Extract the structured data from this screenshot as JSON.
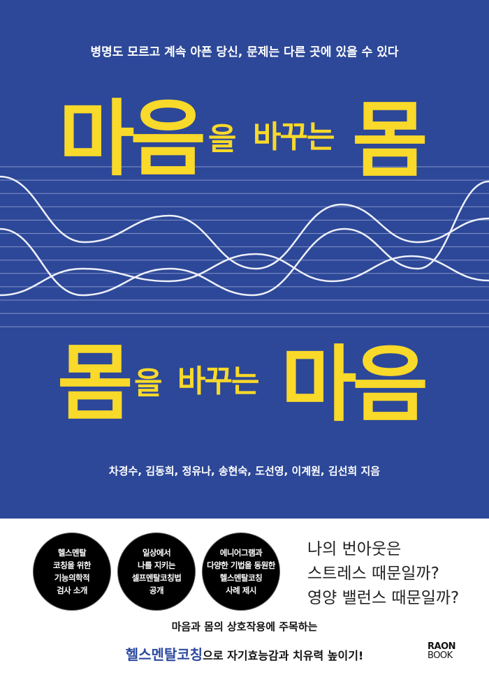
{
  "cover": {
    "colors": {
      "background": "#2d4898",
      "title": "#f9d92a",
      "highlight": "#2d4aa0"
    },
    "tagline": "병명도 모르고 계속 아픈 당신, 문제는 다른 곳에 있을 수 있다",
    "title_line1": {
      "word1": "마음",
      "particle": "을",
      "verb": "바꾸는",
      "word2": "몸"
    },
    "title_line2": {
      "word1": "몸",
      "particle": "을",
      "verb": "바꾸는",
      "word2": "마음"
    },
    "authors": "차경수, 김동희, 정유나, 송현숙, 도선영, 이계원, 김선희 지음"
  },
  "badges": [
    {
      "lines": [
        "헬스멘탈",
        "코칭을 위한",
        "기능의학적",
        "검사 소개"
      ]
    },
    {
      "lines": [
        "일상에서",
        "나를 지키는",
        "셀프멘탈코칭법",
        "공개"
      ]
    },
    {
      "lines": [
        "에니어그램과",
        "다양한 기법을 동원한",
        "헬스멘탈코칭",
        "사례 제시"
      ]
    }
  ],
  "question": [
    "나의 번아웃은",
    "스트레스 때문일까?",
    "영양 밸런스 때문일까?"
  ],
  "bottom": {
    "line1": "마음과 몸의 상호작용에 주목하는",
    "highlight": "헬스멘탈코칭",
    "line2_rest": "으로 자기효능감과 치유력 높이기!"
  },
  "publisher": {
    "line1": "RAON",
    "line2": "BOOK"
  }
}
